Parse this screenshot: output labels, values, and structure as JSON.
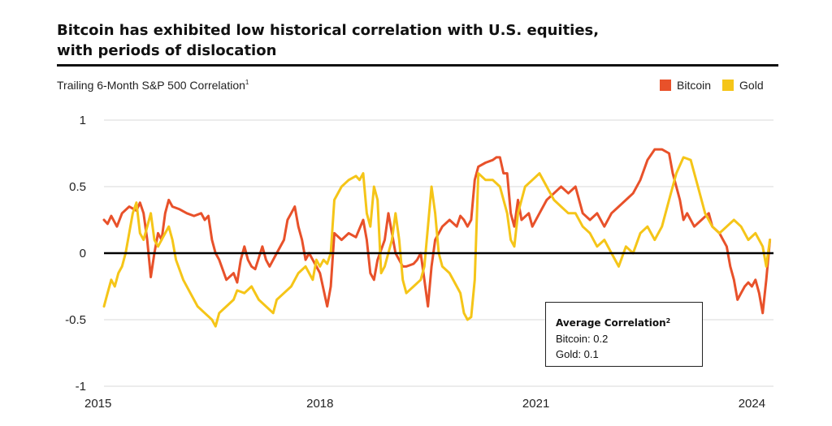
{
  "header": {
    "title_line1": "Bitcoin has exhibited low historical correlation with U.S. equities,",
    "title_line2": "with periods of dislocation",
    "subtitle": "Trailing 6-Month S&P 500 Correlation",
    "subtitle_note": "1"
  },
  "colors": {
    "bitcoin": "#E8512A",
    "gold": "#F5C518",
    "zero_line": "#000000",
    "grid": "#d9d9d9"
  },
  "callout": {
    "title": "Average Correlation",
    "title_note": "2",
    "bitcoin_line": "Bitcoin: 0.2",
    "gold_line": "Gold: 0.1"
  },
  "chart_data": {
    "type": "line",
    "title": "Bitcoin has exhibited low historical correlation with U.S. equities, with periods of dislocation",
    "ylabel": "Trailing 6-Month S&P 500 Correlation",
    "xlim": [
      2015.0,
      2024.3
    ],
    "ylim": [
      -1,
      1
    ],
    "y_ticks": [
      "1",
      "0.5",
      "0",
      "-0.5",
      "-1"
    ],
    "x_ticks": [
      "2015",
      "2018",
      "2021",
      "2024"
    ],
    "grid": true,
    "legend_position": "top-right",
    "series": [
      {
        "name": "Bitcoin",
        "color": "#E8512A",
        "points": [
          [
            2015.0,
            0.25
          ],
          [
            2015.05,
            0.22
          ],
          [
            2015.1,
            0.28
          ],
          [
            2015.18,
            0.2
          ],
          [
            2015.25,
            0.3
          ],
          [
            2015.35,
            0.35
          ],
          [
            2015.45,
            0.32
          ],
          [
            2015.5,
            0.38
          ],
          [
            2015.55,
            0.3
          ],
          [
            2015.6,
            0.1
          ],
          [
            2015.65,
            -0.18
          ],
          [
            2015.7,
            0.0
          ],
          [
            2015.75,
            0.15
          ],
          [
            2015.8,
            0.1
          ],
          [
            2015.85,
            0.3
          ],
          [
            2015.9,
            0.4
          ],
          [
            2015.95,
            0.35
          ],
          [
            2016.05,
            0.33
          ],
          [
            2016.15,
            0.3
          ],
          [
            2016.25,
            0.28
          ],
          [
            2016.35,
            0.3
          ],
          [
            2016.4,
            0.25
          ],
          [
            2016.45,
            0.28
          ],
          [
            2016.5,
            0.1
          ],
          [
            2016.55,
            0.0
          ],
          [
            2016.6,
            -0.05
          ],
          [
            2016.7,
            -0.2
          ],
          [
            2016.8,
            -0.15
          ],
          [
            2016.85,
            -0.22
          ],
          [
            2016.9,
            -0.05
          ],
          [
            2016.95,
            0.05
          ],
          [
            2017.0,
            -0.05
          ],
          [
            2017.05,
            -0.1
          ],
          [
            2017.1,
            -0.12
          ],
          [
            2017.2,
            0.05
          ],
          [
            2017.25,
            -0.05
          ],
          [
            2017.3,
            -0.1
          ],
          [
            2017.4,
            0.0
          ],
          [
            2017.5,
            0.1
          ],
          [
            2017.55,
            0.25
          ],
          [
            2017.6,
            0.3
          ],
          [
            2017.65,
            0.35
          ],
          [
            2017.7,
            0.2
          ],
          [
            2017.75,
            0.1
          ],
          [
            2017.8,
            -0.05
          ],
          [
            2017.85,
            0.0
          ],
          [
            2017.9,
            -0.05
          ],
          [
            2017.95,
            -0.1
          ],
          [
            2018.0,
            -0.15
          ],
          [
            2018.1,
            -0.4
          ],
          [
            2018.15,
            -0.25
          ],
          [
            2018.2,
            0.15
          ],
          [
            2018.3,
            0.1
          ],
          [
            2018.4,
            0.15
          ],
          [
            2018.5,
            0.12
          ],
          [
            2018.6,
            0.25
          ],
          [
            2018.65,
            0.1
          ],
          [
            2018.7,
            -0.15
          ],
          [
            2018.75,
            -0.2
          ],
          [
            2018.8,
            -0.05
          ],
          [
            2018.9,
            0.1
          ],
          [
            2018.95,
            0.3
          ],
          [
            2019.0,
            0.15
          ],
          [
            2019.05,
            0.0
          ],
          [
            2019.1,
            -0.05
          ],
          [
            2019.15,
            -0.1
          ],
          [
            2019.2,
            -0.1
          ],
          [
            2019.3,
            -0.08
          ],
          [
            2019.35,
            -0.05
          ],
          [
            2019.4,
            0.0
          ],
          [
            2019.45,
            -0.2
          ],
          [
            2019.5,
            -0.4
          ],
          [
            2019.55,
            -0.1
          ],
          [
            2019.6,
            0.1
          ],
          [
            2019.7,
            0.2
          ],
          [
            2019.8,
            0.25
          ],
          [
            2019.9,
            0.2
          ],
          [
            2019.95,
            0.28
          ],
          [
            2020.0,
            0.25
          ],
          [
            2020.05,
            0.2
          ],
          [
            2020.1,
            0.25
          ],
          [
            2020.15,
            0.55
          ],
          [
            2020.2,
            0.65
          ],
          [
            2020.3,
            0.68
          ],
          [
            2020.4,
            0.7
          ],
          [
            2020.45,
            0.72
          ],
          [
            2020.5,
            0.72
          ],
          [
            2020.55,
            0.6
          ],
          [
            2020.6,
            0.6
          ],
          [
            2020.65,
            0.3
          ],
          [
            2020.7,
            0.2
          ],
          [
            2020.75,
            0.4
          ],
          [
            2020.8,
            0.25
          ],
          [
            2020.9,
            0.3
          ],
          [
            2020.95,
            0.2
          ],
          [
            2021.05,
            0.3
          ],
          [
            2021.15,
            0.4
          ],
          [
            2021.25,
            0.45
          ],
          [
            2021.35,
            0.5
          ],
          [
            2021.45,
            0.45
          ],
          [
            2021.55,
            0.5
          ],
          [
            2021.65,
            0.3
          ],
          [
            2021.75,
            0.25
          ],
          [
            2021.85,
            0.3
          ],
          [
            2021.95,
            0.2
          ],
          [
            2022.05,
            0.3
          ],
          [
            2022.15,
            0.35
          ],
          [
            2022.25,
            0.4
          ],
          [
            2022.35,
            0.45
          ],
          [
            2022.45,
            0.55
          ],
          [
            2022.55,
            0.7
          ],
          [
            2022.65,
            0.78
          ],
          [
            2022.75,
            0.78
          ],
          [
            2022.85,
            0.75
          ],
          [
            2022.9,
            0.6
          ],
          [
            2022.95,
            0.5
          ],
          [
            2023.0,
            0.4
          ],
          [
            2023.05,
            0.25
          ],
          [
            2023.1,
            0.3
          ],
          [
            2023.2,
            0.2
          ],
          [
            2023.3,
            0.25
          ],
          [
            2023.4,
            0.3
          ],
          [
            2023.45,
            0.2
          ],
          [
            2023.55,
            0.15
          ],
          [
            2023.65,
            0.05
          ],
          [
            2023.7,
            -0.1
          ],
          [
            2023.75,
            -0.2
          ],
          [
            2023.8,
            -0.35
          ],
          [
            2023.85,
            -0.3
          ],
          [
            2023.9,
            -0.25
          ],
          [
            2023.95,
            -0.22
          ],
          [
            2024.0,
            -0.25
          ],
          [
            2024.05,
            -0.2
          ],
          [
            2024.1,
            -0.3
          ],
          [
            2024.15,
            -0.45
          ],
          [
            2024.2,
            -0.2
          ],
          [
            2024.25,
            0.1
          ]
        ]
      },
      {
        "name": "Gold",
        "color": "#F5C518",
        "points": [
          [
            2015.0,
            -0.4
          ],
          [
            2015.05,
            -0.3
          ],
          [
            2015.1,
            -0.2
          ],
          [
            2015.15,
            -0.25
          ],
          [
            2015.2,
            -0.15
          ],
          [
            2015.25,
            -0.1
          ],
          [
            2015.3,
            0.0
          ],
          [
            2015.35,
            0.15
          ],
          [
            2015.4,
            0.3
          ],
          [
            2015.45,
            0.38
          ],
          [
            2015.5,
            0.15
          ],
          [
            2015.55,
            0.1
          ],
          [
            2015.6,
            0.2
          ],
          [
            2015.65,
            0.3
          ],
          [
            2015.7,
            0.1
          ],
          [
            2015.75,
            0.05
          ],
          [
            2015.8,
            0.1
          ],
          [
            2015.9,
            0.2
          ],
          [
            2015.95,
            0.1
          ],
          [
            2016.0,
            -0.05
          ],
          [
            2016.1,
            -0.2
          ],
          [
            2016.2,
            -0.3
          ],
          [
            2016.3,
            -0.4
          ],
          [
            2016.4,
            -0.45
          ],
          [
            2016.5,
            -0.5
          ],
          [
            2016.55,
            -0.55
          ],
          [
            2016.6,
            -0.45
          ],
          [
            2016.7,
            -0.4
          ],
          [
            2016.8,
            -0.35
          ],
          [
            2016.85,
            -0.28
          ],
          [
            2016.95,
            -0.3
          ],
          [
            2017.05,
            -0.25
          ],
          [
            2017.15,
            -0.35
          ],
          [
            2017.25,
            -0.4
          ],
          [
            2017.35,
            -0.45
          ],
          [
            2017.4,
            -0.35
          ],
          [
            2017.5,
            -0.3
          ],
          [
            2017.6,
            -0.25
          ],
          [
            2017.7,
            -0.15
          ],
          [
            2017.8,
            -0.1
          ],
          [
            2017.9,
            -0.2
          ],
          [
            2017.95,
            -0.05
          ],
          [
            2018.0,
            -0.1
          ],
          [
            2018.05,
            -0.05
          ],
          [
            2018.1,
            -0.08
          ],
          [
            2018.15,
            0.0
          ],
          [
            2018.2,
            0.4
          ],
          [
            2018.3,
            0.5
          ],
          [
            2018.4,
            0.55
          ],
          [
            2018.5,
            0.58
          ],
          [
            2018.55,
            0.55
          ],
          [
            2018.6,
            0.6
          ],
          [
            2018.65,
            0.3
          ],
          [
            2018.7,
            0.2
          ],
          [
            2018.75,
            0.5
          ],
          [
            2018.8,
            0.4
          ],
          [
            2018.85,
            -0.15
          ],
          [
            2018.9,
            -0.1
          ],
          [
            2019.0,
            0.1
          ],
          [
            2019.05,
            0.3
          ],
          [
            2019.1,
            0.1
          ],
          [
            2019.15,
            -0.2
          ],
          [
            2019.2,
            -0.3
          ],
          [
            2019.3,
            -0.25
          ],
          [
            2019.4,
            -0.2
          ],
          [
            2019.45,
            -0.1
          ],
          [
            2019.5,
            0.2
          ],
          [
            2019.55,
            0.5
          ],
          [
            2019.6,
            0.3
          ],
          [
            2019.65,
            0.0
          ],
          [
            2019.7,
            -0.1
          ],
          [
            2019.8,
            -0.15
          ],
          [
            2019.9,
            -0.25
          ],
          [
            2019.95,
            -0.3
          ],
          [
            2020.0,
            -0.45
          ],
          [
            2020.05,
            -0.5
          ],
          [
            2020.1,
            -0.48
          ],
          [
            2020.15,
            -0.2
          ],
          [
            2020.2,
            0.6
          ],
          [
            2020.3,
            0.55
          ],
          [
            2020.4,
            0.55
          ],
          [
            2020.5,
            0.5
          ],
          [
            2020.6,
            0.3
          ],
          [
            2020.65,
            0.1
          ],
          [
            2020.7,
            0.05
          ],
          [
            2020.75,
            0.3
          ],
          [
            2020.85,
            0.5
          ],
          [
            2020.95,
            0.55
          ],
          [
            2021.05,
            0.6
          ],
          [
            2021.15,
            0.5
          ],
          [
            2021.25,
            0.4
          ],
          [
            2021.35,
            0.35
          ],
          [
            2021.45,
            0.3
          ],
          [
            2021.55,
            0.3
          ],
          [
            2021.65,
            0.2
          ],
          [
            2021.75,
            0.15
          ],
          [
            2021.85,
            0.05
          ],
          [
            2021.95,
            0.1
          ],
          [
            2022.05,
            0.0
          ],
          [
            2022.15,
            -0.1
          ],
          [
            2022.25,
            0.05
          ],
          [
            2022.35,
            0.0
          ],
          [
            2022.45,
            0.15
          ],
          [
            2022.55,
            0.2
          ],
          [
            2022.65,
            0.1
          ],
          [
            2022.75,
            0.2
          ],
          [
            2022.85,
            0.4
          ],
          [
            2022.95,
            0.6
          ],
          [
            2023.05,
            0.72
          ],
          [
            2023.15,
            0.7
          ],
          [
            2023.25,
            0.5
          ],
          [
            2023.35,
            0.3
          ],
          [
            2023.45,
            0.2
          ],
          [
            2023.55,
            0.15
          ],
          [
            2023.65,
            0.2
          ],
          [
            2023.75,
            0.25
          ],
          [
            2023.85,
            0.2
          ],
          [
            2023.95,
            0.1
          ],
          [
            2024.05,
            0.15
          ],
          [
            2024.15,
            0.05
          ],
          [
            2024.2,
            -0.1
          ],
          [
            2024.25,
            0.1
          ]
        ]
      }
    ]
  }
}
